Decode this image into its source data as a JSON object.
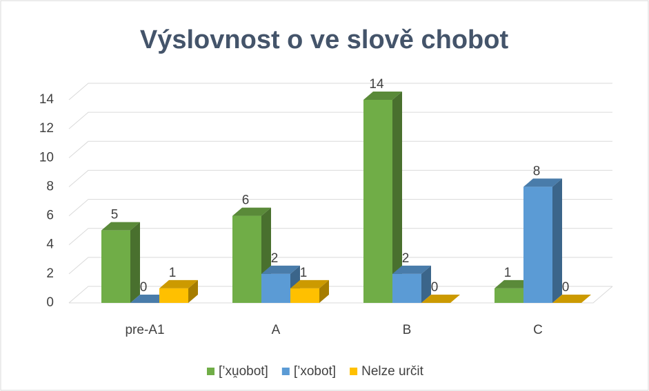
{
  "chart_data": {
    "type": "bar3d",
    "title": "Výslovnost o ve slově chobot",
    "categories": [
      "pre-A1",
      "A",
      "B",
      "C"
    ],
    "series": [
      {
        "name": "[’xu̯obot]",
        "color": "#70ad47",
        "values": [
          5,
          6,
          14,
          1
        ]
      },
      {
        "name": "[’xobot]",
        "color": "#5b9bd5",
        "values": [
          0,
          2,
          2,
          8
        ]
      },
      {
        "name": "Nelze určit",
        "color": "#ffc000",
        "values": [
          1,
          1,
          0,
          0
        ]
      }
    ],
    "ylim": [
      0,
      14
    ],
    "yticks": [
      0,
      2,
      4,
      6,
      8,
      10,
      12,
      14
    ],
    "grid": true,
    "legend": "bottom"
  }
}
